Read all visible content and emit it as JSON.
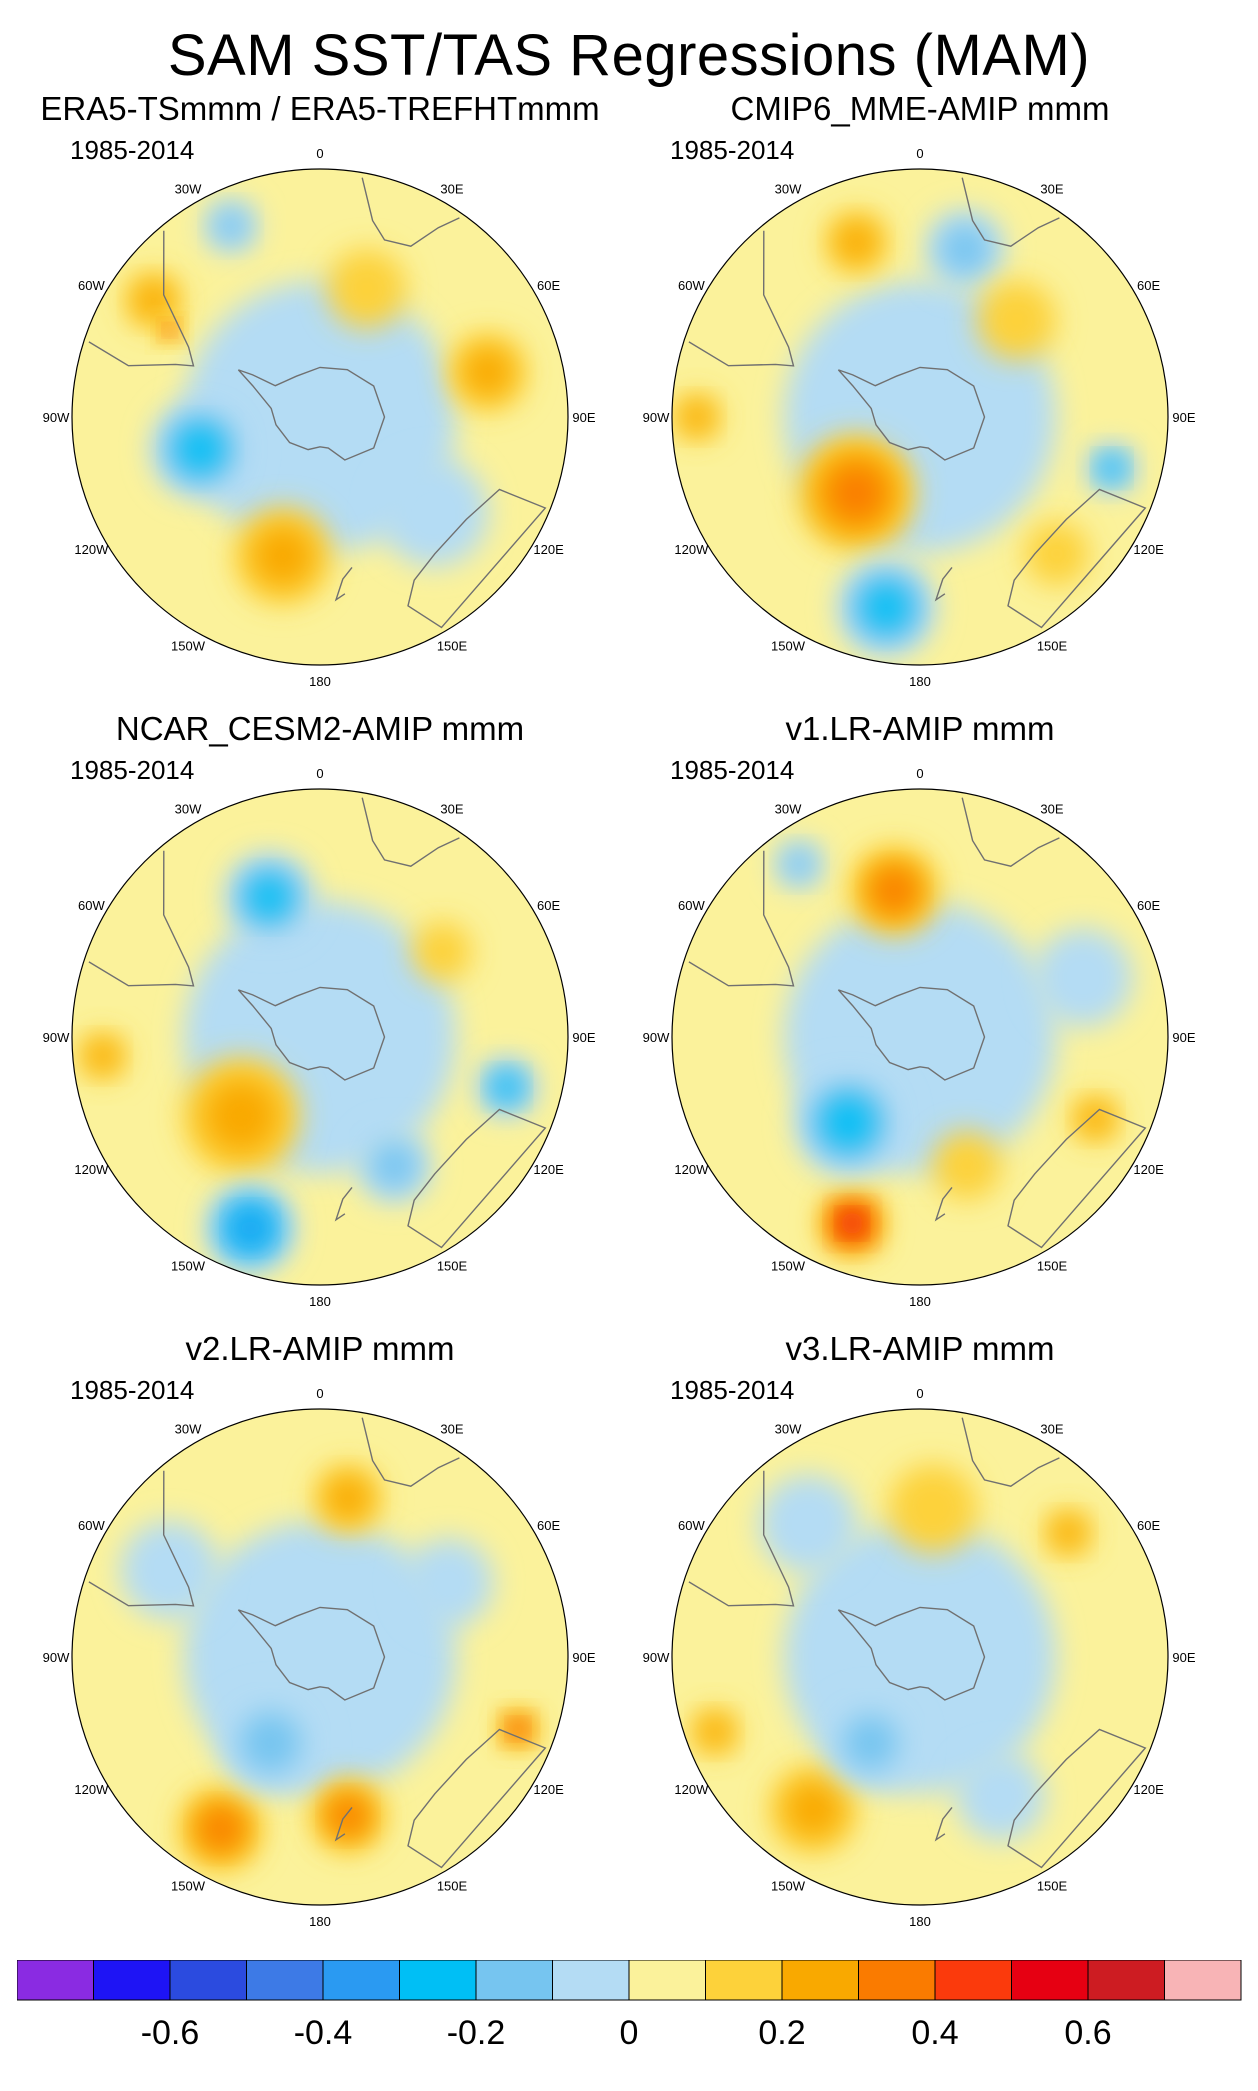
{
  "title": "SAM SST/TAS Regressions (MAM)",
  "longitude_labels": [
    "0",
    "30E",
    "60E",
    "90E",
    "120E",
    "150E",
    "180",
    "150W",
    "120W",
    "90W",
    "60W",
    "30W"
  ],
  "panels": [
    {
      "title": "ERA5-TSmmm / ERA5-TREFHTmmm",
      "period": "1985-2014",
      "blobs": [
        {
          "lon": -105,
          "r": 0.5,
          "lvl": -3,
          "s": 0.2
        },
        {
          "lon": -165,
          "r": 0.58,
          "lvl": 2,
          "s": 0.2
        },
        {
          "lon": 75,
          "r": 0.7,
          "lvl": 2,
          "s": 0.16
        },
        {
          "lon": -55,
          "r": 0.82,
          "lvl": 2,
          "s": 0.12
        },
        {
          "lon": -60,
          "r": 0.7,
          "lvl": 4,
          "s": 0.05
        },
        {
          "lon": -25,
          "r": 0.85,
          "lvl": -2,
          "s": 0.11
        },
        {
          "lon": 130,
          "r": 0.6,
          "lvl": -1,
          "s": 0.22
        },
        {
          "lon": 20,
          "r": 0.55,
          "lvl": 1,
          "s": 0.16
        }
      ]
    },
    {
      "title": "CMIP6_MME-AMIP  mmm",
      "period": "1985-2014",
      "blobs": [
        {
          "lon": -140,
          "r": 0.4,
          "lvl": 5,
          "s": 0.13
        },
        {
          "lon": -140,
          "r": 0.4,
          "lvl": 3,
          "s": 0.24
        },
        {
          "lon": -170,
          "r": 0.78,
          "lvl": -3,
          "s": 0.2
        },
        {
          "lon": -20,
          "r": 0.75,
          "lvl": 2,
          "s": 0.13
        },
        {
          "lon": 15,
          "r": 0.7,
          "lvl": -2,
          "s": 0.16
        },
        {
          "lon": 105,
          "r": 0.8,
          "lvl": -3,
          "s": 0.1
        },
        {
          "lon": 135,
          "r": 0.78,
          "lvl": 1,
          "s": 0.13
        },
        {
          "lon": 45,
          "r": 0.55,
          "lvl": 1,
          "s": 0.16
        },
        {
          "lon": -90,
          "r": 0.9,
          "lvl": 2,
          "s": 0.1
        }
      ]
    },
    {
      "title": "NCAR_CESM2-AMIP  mmm",
      "period": "1985-2014",
      "blobs": [
        {
          "lon": -135,
          "r": 0.45,
          "lvl": 5,
          "s": 0.12
        },
        {
          "lon": -135,
          "r": 0.45,
          "lvl": 2,
          "s": 0.24
        },
        {
          "lon": -160,
          "r": 0.82,
          "lvl": -4,
          "s": 0.18
        },
        {
          "lon": -20,
          "r": 0.6,
          "lvl": -3,
          "s": 0.18
        },
        {
          "lon": 105,
          "r": 0.78,
          "lvl": -3,
          "s": 0.12
        },
        {
          "lon": -95,
          "r": 0.88,
          "lvl": 2,
          "s": 0.1
        },
        {
          "lon": 150,
          "r": 0.6,
          "lvl": -2,
          "s": 0.15
        },
        {
          "lon": 55,
          "r": 0.6,
          "lvl": 1,
          "s": 0.12
        }
      ]
    },
    {
      "title": "v1.LR-AMIP  mmm",
      "period": "1985-2014",
      "blobs": [
        {
          "lon": -160,
          "r": 0.8,
          "lvl": 5,
          "s": 0.13
        },
        {
          "lon": -140,
          "r": 0.45,
          "lvl": -3,
          "s": 0.22
        },
        {
          "lon": -10,
          "r": 0.6,
          "lvl": 3,
          "s": 0.18
        },
        {
          "lon": -35,
          "r": 0.85,
          "lvl": -2,
          "s": 0.1
        },
        {
          "lon": 115,
          "r": 0.78,
          "lvl": 2,
          "s": 0.1
        },
        {
          "lon": 70,
          "r": 0.7,
          "lvl": -1,
          "s": 0.2
        },
        {
          "lon": 160,
          "r": 0.55,
          "lvl": 1,
          "s": 0.14
        }
      ]
    },
    {
      "title": "v2.LR-AMIP  mmm",
      "period": "1985-2014",
      "blobs": [
        {
          "lon": -150,
          "r": 0.8,
          "lvl": 3,
          "s": 0.17
        },
        {
          "lon": 170,
          "r": 0.65,
          "lvl": 3,
          "s": 0.15
        },
        {
          "lon": 110,
          "r": 0.85,
          "lvl": 4,
          "s": 0.08
        },
        {
          "lon": 10,
          "r": 0.65,
          "lvl": 2,
          "s": 0.14
        },
        {
          "lon": -150,
          "r": 0.4,
          "lvl": -2,
          "s": 0.2
        },
        {
          "lon": -60,
          "r": 0.7,
          "lvl": -1,
          "s": 0.2
        },
        {
          "lon": 60,
          "r": 0.6,
          "lvl": -1,
          "s": 0.18
        }
      ]
    },
    {
      "title": "v3.LR-AMIP  mmm",
      "period": "1985-2014",
      "blobs": [
        {
          "lon": -145,
          "r": 0.75,
          "lvl": 2,
          "s": 0.18
        },
        {
          "lon": -110,
          "r": 0.88,
          "lvl": 2,
          "s": 0.1
        },
        {
          "lon": 50,
          "r": 0.78,
          "lvl": 2,
          "s": 0.1
        },
        {
          "lon": 5,
          "r": 0.6,
          "lvl": 1,
          "s": 0.18
        },
        {
          "lon": -150,
          "r": 0.4,
          "lvl": -2,
          "s": 0.18
        },
        {
          "lon": -40,
          "r": 0.7,
          "lvl": -1,
          "s": 0.2
        },
        {
          "lon": 150,
          "r": 0.65,
          "lvl": -1,
          "s": 0.18
        }
      ]
    }
  ],
  "colorbar": {
    "colors": [
      "#8a2be2",
      "#1e14f5",
      "#2b4bdf",
      "#3d7ae6",
      "#2a9af2",
      "#00bff5",
      "#76c5f0",
      "#b4dcf4",
      "#fbf29b",
      "#fdd23a",
      "#f9a900",
      "#fa7b00",
      "#fb3a0c",
      "#e60012",
      "#cd1c22",
      "#f8b4b6"
    ],
    "tick_labels": [
      "-0.6",
      "-0.4",
      "-0.2",
      "0",
      "0.2",
      "0.4",
      "0.6"
    ],
    "tick_values": [
      -0.6,
      -0.4,
      -0.2,
      0,
      0.2,
      0.4,
      0.6
    ],
    "min": -0.8,
    "max": 0.8
  }
}
